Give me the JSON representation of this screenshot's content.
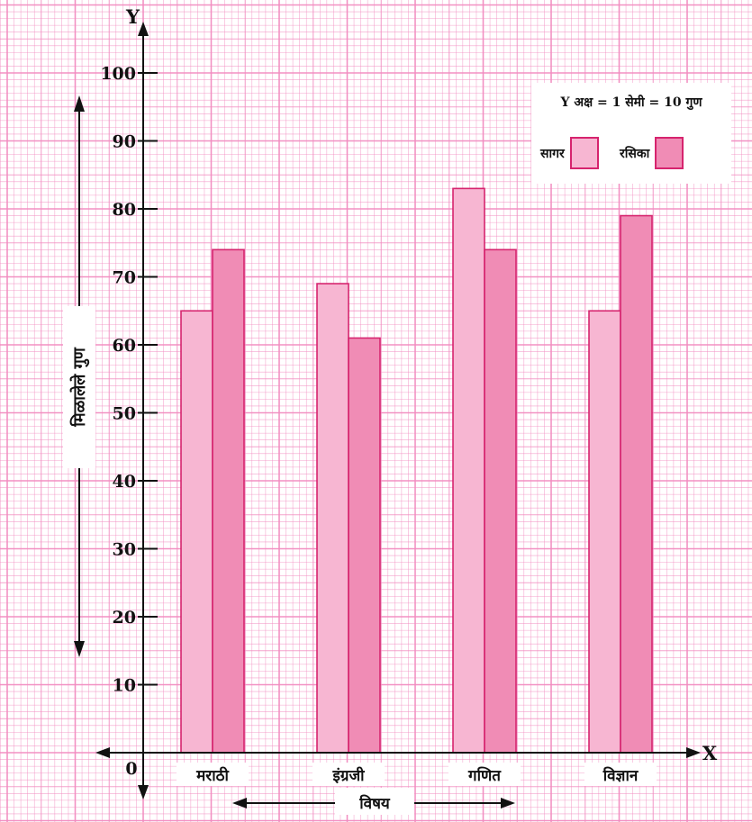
{
  "chart_data": {
    "type": "bar",
    "categories": [
      "मराठी",
      "इंग्रजी",
      "गणित",
      "विज्ञान"
    ],
    "series": [
      {
        "name": "सागर",
        "values": [
          65,
          69,
          83,
          65
        ],
        "color": "#f7b6d2"
      },
      {
        "name": "रसिका",
        "values": [
          74,
          61,
          74,
          79
        ],
        "color": "#f08cb5"
      }
    ],
    "xlabel": "विषय",
    "ylabel": "मिळालेले गुण",
    "x_axis_letter": "X",
    "y_axis_letter": "Y",
    "origin_label": "0",
    "ylim": [
      0,
      100
    ],
    "yticks": [
      10,
      20,
      30,
      40,
      50,
      60,
      70,
      80,
      90,
      100
    ],
    "grid": true,
    "grid_color": "#f28cc0",
    "legend": {
      "placement": "top-right",
      "scale_note": "Y अक्ष = 1 सेमी = 10 गुण"
    }
  }
}
